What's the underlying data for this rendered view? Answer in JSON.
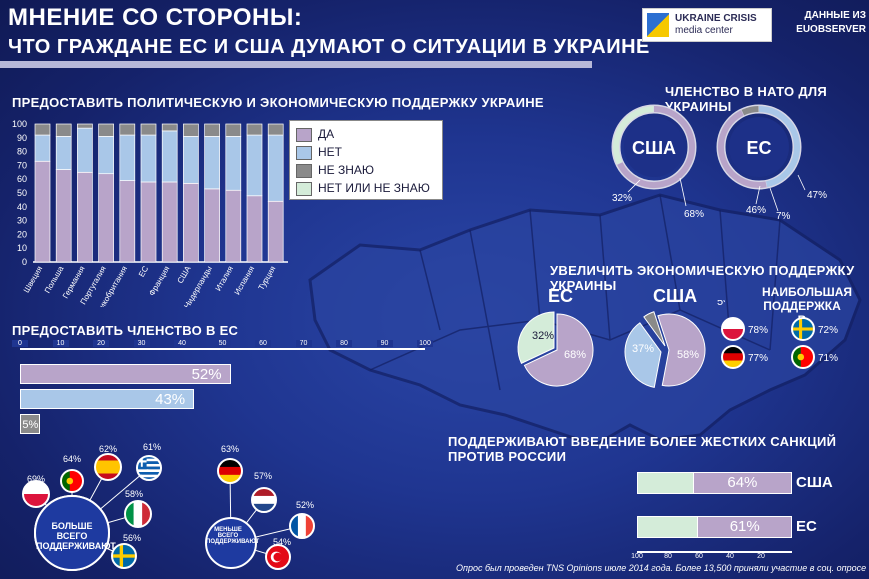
{
  "header": {
    "title_line1": "МНЕНИЕ СО СТОРОНЫ:",
    "title_line2": "ЧТО ГРАЖДАНЕ ЕС И США ДУМАЮТ О СИТУАЦИИ В УКРАИНЕ",
    "logo_line1": "UKRAINE CRISIS",
    "logo_line2": "media center",
    "source_line1": "ДАННЫЕ ИЗ",
    "source_line2": "EUOBSERVER"
  },
  "colors": {
    "yes": "#b8a4c9",
    "no": "#a9c7e8",
    "dont_know": "#8a8a8a",
    "no_or_dont_know": "#d4ecd9"
  },
  "support_section": {
    "title": "ПРЕДОСТАВИТЬ ПОЛИТИЧЕСКУЮ И ЭКОНОМИЧЕСКУЮ ПОДДЕРЖКУ УКРАИНЕ",
    "legend": [
      "ДА",
      "НЕТ",
      "НЕ ЗНАЮ",
      "НЕТ ИЛИ НЕ ЗНАЮ"
    ]
  },
  "chart_data": [
    {
      "type": "bar",
      "title": "ПРЕДОСТАВИТЬ ПОЛИТИЧЕСКУЮ И ЭКОНОМИЧЕСКУЮ ПОДДЕРЖКУ УКРАИНЕ",
      "categories": [
        "Швеция",
        "Польша",
        "Германия",
        "Португалия",
        "Великобритания",
        "ЕС",
        "Франция",
        "США",
        "Нидерланды",
        "Италия",
        "Испания",
        "Турция"
      ],
      "ylim": [
        0,
        100
      ],
      "yticks": [
        0,
        10,
        20,
        30,
        40,
        50,
        60,
        70,
        80,
        90,
        100
      ],
      "series": [
        {
          "name": "ДА",
          "values": [
            73,
            67,
            65,
            64,
            59,
            58,
            58,
            57,
            53,
            52,
            48,
            44
          ]
        },
        {
          "name": "НЕТ",
          "values": [
            19,
            24,
            32,
            27,
            33,
            34,
            37,
            34,
            38,
            39,
            44,
            48
          ]
        },
        {
          "name": "НЕ ЗНАЮ",
          "values": [
            8,
            9,
            3,
            9,
            8,
            8,
            5,
            9,
            9,
            9,
            8,
            8
          ]
        }
      ]
    },
    {
      "type": "bar",
      "title": "ПРЕДОСТАВИТЬ ЧЛЕНСТВО В ЕС",
      "xticks": [
        0,
        10,
        20,
        30,
        40,
        50,
        60,
        70,
        80,
        90,
        100
      ],
      "values": [
        52,
        43,
        5
      ],
      "labels": [
        "52%",
        "43%",
        "5%"
      ]
    },
    {
      "type": "pie",
      "title": "ЧЛЕНСТВО В НАТО ДЛЯ УКРАИНЫ",
      "charts": [
        {
          "name": "США",
          "values": [
            68,
            32
          ],
          "labels": [
            "68%",
            "32%"
          ]
        },
        {
          "name": "ЕС",
          "values": [
            47,
            46,
            7
          ],
          "labels": [
            "47%",
            "46%",
            "7%"
          ]
        }
      ]
    },
    {
      "type": "pie",
      "title": "УВЕЛИЧИТЬ ЭКОНОМИЧЕСКУЮ ПОДДЕРЖКУ УКРАИНЫ",
      "charts": [
        {
          "name": "ЕС",
          "values": [
            68,
            32
          ],
          "labels": [
            "68%",
            "32%"
          ]
        },
        {
          "name": "США",
          "values": [
            58,
            37,
            5
          ],
          "labels": [
            "58%",
            "37%",
            "5%"
          ]
        }
      ]
    },
    {
      "type": "bar",
      "title": "ПОДДЕРЖИВАЮТ ВВЕДЕНИЕ БОЛЕЕ ЖЕСТКИХ САНКЦИЙ ПРОТИВ РОССИИ",
      "categories": [
        "США",
        "ЕС"
      ],
      "values": [
        64,
        61
      ],
      "labels": [
        "64%",
        "61%"
      ],
      "xticks": [
        100,
        80,
        60,
        40,
        20
      ]
    }
  ],
  "eu_membership": {
    "title": "ПРЕДОСТАВИТЬ ЧЛЕНСТВО В ЕС",
    "ticks": [
      "0",
      "10",
      "20",
      "30",
      "40",
      "50",
      "60",
      "70",
      "80",
      "90",
      "100"
    ],
    "labels": [
      "52%",
      "43%",
      "5%"
    ]
  },
  "nato": {
    "title": "ЧЛЕНСТВО В НАТО ДЛЯ УКРАИНЫ",
    "usa": "США",
    "eu": "ЕС",
    "usa_pcts": [
      "32%",
      "68%"
    ],
    "eu_pcts": [
      "46%",
      "7%",
      "47%"
    ]
  },
  "econ": {
    "title": "УВЕЛИЧИТЬ ЭКОНОМИЧЕСКУЮ ПОДДЕРЖКУ УКРАИНЫ",
    "eu": "ЕС",
    "usa": "США",
    "eu_pcts": [
      "32%",
      "68%"
    ],
    "usa_pcts": [
      "37%",
      "58%",
      "5%"
    ],
    "top_title": "НАИБОЛЬШАЯ ПОДДЕРЖКА В",
    "flags": [
      {
        "country": "poland",
        "pct": "78%"
      },
      {
        "country": "sweden",
        "pct": "72%"
      },
      {
        "country": "germany",
        "pct": "77%"
      },
      {
        "country": "portugal",
        "pct": "71%"
      }
    ]
  },
  "sanctions": {
    "title": "ПОДДЕРЖИВАЮТ ВВЕДЕНИЕ БОЛЕЕ ЖЕСТКИХ САНКЦИЙ ПРОТИВ РОССИИ",
    "rows": [
      {
        "name": "США",
        "pct": "64%"
      },
      {
        "name": "ЕС",
        "pct": "61%"
      }
    ],
    "ticks": [
      "100",
      "80",
      "60",
      "40",
      "20"
    ]
  },
  "most_support": {
    "label": "БОЛЬШЕ ВСЕГО ПОДДЕРЖИВАЮТ",
    "flags": [
      {
        "country": "poland",
        "pct": "69%"
      },
      {
        "country": "portugal",
        "pct": "64%"
      },
      {
        "country": "spain",
        "pct": "62%"
      },
      {
        "country": "greece",
        "pct": "61%"
      },
      {
        "country": "italy",
        "pct": "58%"
      },
      {
        "country": "sweden",
        "pct": "56%"
      }
    ]
  },
  "least_support": {
    "label": "МЕНЬШЕ ВСЕГО ПОДДЕРЖИВАЮТ",
    "flags": [
      {
        "country": "germany",
        "pct": "63%"
      },
      {
        "country": "netherlands",
        "pct": "57%"
      },
      {
        "country": "france",
        "pct": "52%"
      },
      {
        "country": "turkey",
        "pct": "54%"
      }
    ]
  },
  "footnote": "Опрос был проведен TNS Opinions июле 2014 года. Более 13,500 приняли участие в соц. опросе"
}
